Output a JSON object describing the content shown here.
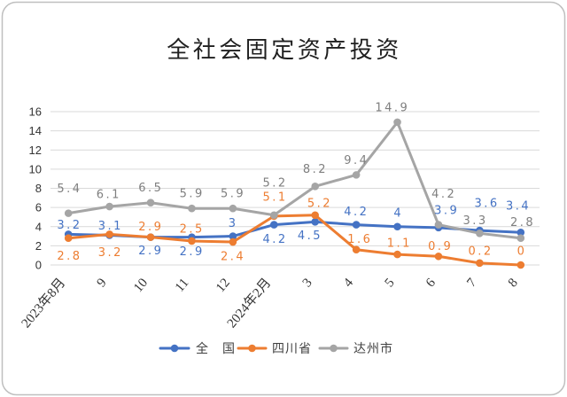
{
  "chart_data": {
    "type": "line",
    "title": "全社会固定资产投资",
    "categories": [
      "2023年8月",
      "9",
      "10",
      "11",
      "12",
      "2024年2月",
      "3",
      "4",
      "5",
      "6",
      "7",
      "8"
    ],
    "ylim": [
      0,
      16
    ],
    "yticks": [
      0,
      2,
      4,
      6,
      8,
      10,
      12,
      14,
      16
    ],
    "grid": true,
    "legend": "bottom",
    "series": [
      {
        "name": "全　国",
        "color": "#4472C4",
        "label_color": "#4472C4",
        "values": [
          3.2,
          3.1,
          2.9,
          2.9,
          3,
          4.2,
          4.5,
          4.2,
          4,
          3.9,
          3.6,
          3.4
        ]
      },
      {
        "name": "四川省",
        "color": "#ED7D31",
        "label_color": "#ED7D31",
        "values": [
          2.8,
          3.2,
          2.9,
          2.5,
          2.4,
          5.1,
          5.2,
          1.6,
          1.1,
          0.9,
          0.2,
          0
        ]
      },
      {
        "name": "达州市",
        "color": "#A5A5A5",
        "label_color": "#7F7F7F",
        "values": [
          5.4,
          6.1,
          6.5,
          5.9,
          5.9,
          5.2,
          8.2,
          9.4,
          14.9,
          4.2,
          3.3,
          2.8
        ]
      }
    ]
  },
  "frame_color": "#BFBFBF",
  "grid_color": "#D9D9D9"
}
